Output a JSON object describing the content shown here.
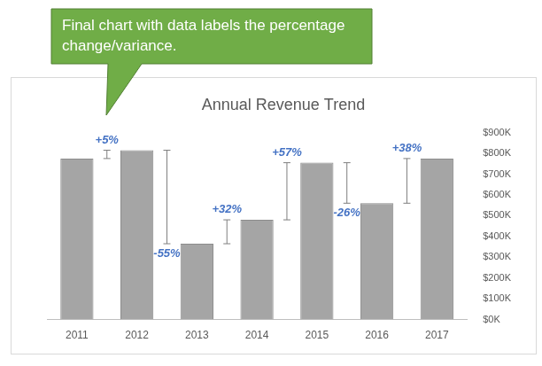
{
  "chart_data": {
    "type": "bar",
    "title": "Annual Revenue Trend",
    "categories": [
      "2011",
      "2012",
      "2013",
      "2014",
      "2015",
      "2016",
      "2017"
    ],
    "values": [
      775000,
      815000,
      365000,
      480000,
      755000,
      560000,
      775000
    ],
    "color": "#a5a5a5",
    "ylim": [
      0,
      900000
    ],
    "yticks": [
      {
        "value": 0,
        "label": "$0K"
      },
      {
        "value": 100000,
        "label": "$100K"
      },
      {
        "value": 200000,
        "label": "$200K"
      },
      {
        "value": 300000,
        "label": "$300K"
      },
      {
        "value": 400000,
        "label": "$400K"
      },
      {
        "value": 500000,
        "label": "$500K"
      },
      {
        "value": 600000,
        "label": "$600K"
      },
      {
        "value": 700000,
        "label": "$700K"
      },
      {
        "value": 800000,
        "label": "$800K"
      },
      {
        "value": 900000,
        "label": "$900K"
      }
    ],
    "grid": false,
    "variance": {
      "values": [
        5,
        -55,
        32,
        57,
        -26,
        38
      ],
      "value_labels": [
        "+5%",
        "-55%",
        "+32%",
        "+57%",
        "-26%",
        "+38%"
      ],
      "color": "#4472c4"
    }
  },
  "annotation": {
    "text": "Final chart with data labels the percentage change/variance."
  }
}
